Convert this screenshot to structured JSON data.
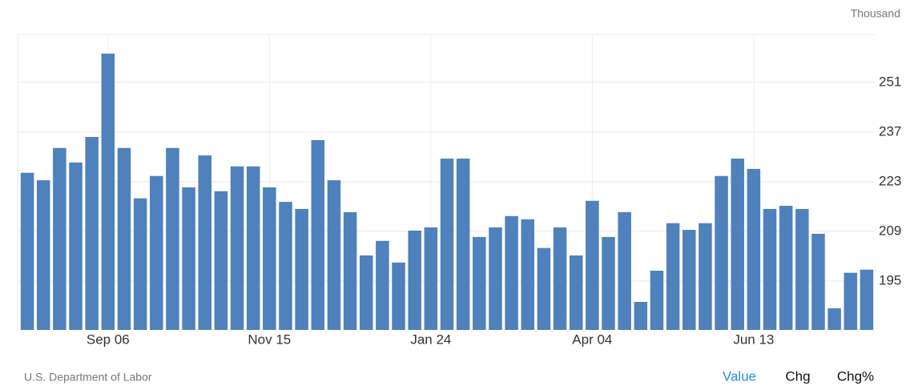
{
  "chart_data": {
    "type": "bar",
    "unit_label": "Thousand",
    "categories": [
      null,
      null,
      null,
      null,
      null,
      "Sep 06",
      null,
      null,
      null,
      null,
      null,
      null,
      null,
      null,
      null,
      "Nov 15",
      null,
      null,
      null,
      null,
      null,
      null,
      null,
      null,
      null,
      "Jan 24",
      null,
      null,
      null,
      null,
      null,
      null,
      null,
      null,
      null,
      "Apr 04",
      null,
      null,
      null,
      null,
      null,
      null,
      null,
      null,
      null,
      "Jun 13",
      null,
      null,
      null,
      null,
      null,
      null,
      null
    ],
    "values": [
      225.5,
      223.4,
      232.5,
      228.4,
      235.6,
      259.1,
      232.5,
      218.3,
      224.6,
      232.5,
      221.4,
      230.4,
      220.3,
      227.3,
      227.3,
      221.4,
      217.3,
      215.3,
      234.7,
      223.4,
      214.4,
      202.2,
      206.3,
      200.2,
      209.2,
      210.1,
      229.5,
      229.5,
      207.4,
      210.1,
      213.3,
      212.4,
      204.3,
      210.1,
      202.2,
      217.6,
      207.4,
      214.4,
      189.1,
      197.9,
      211.3,
      209.4,
      211.3,
      224.6,
      229.5,
      226.6,
      215.3,
      216.2,
      215.3,
      208.3,
      187.3,
      197.3,
      198.2
    ],
    "color": "#4f81bd",
    "ylim": [
      181.2,
      264.5
    ],
    "yticks": [
      195,
      209,
      223,
      237,
      251
    ],
    "grid": true
  },
  "footer": {
    "source": "U.S. Department of Labor",
    "tabs": [
      "Value",
      "Chg",
      "Chg%"
    ]
  }
}
